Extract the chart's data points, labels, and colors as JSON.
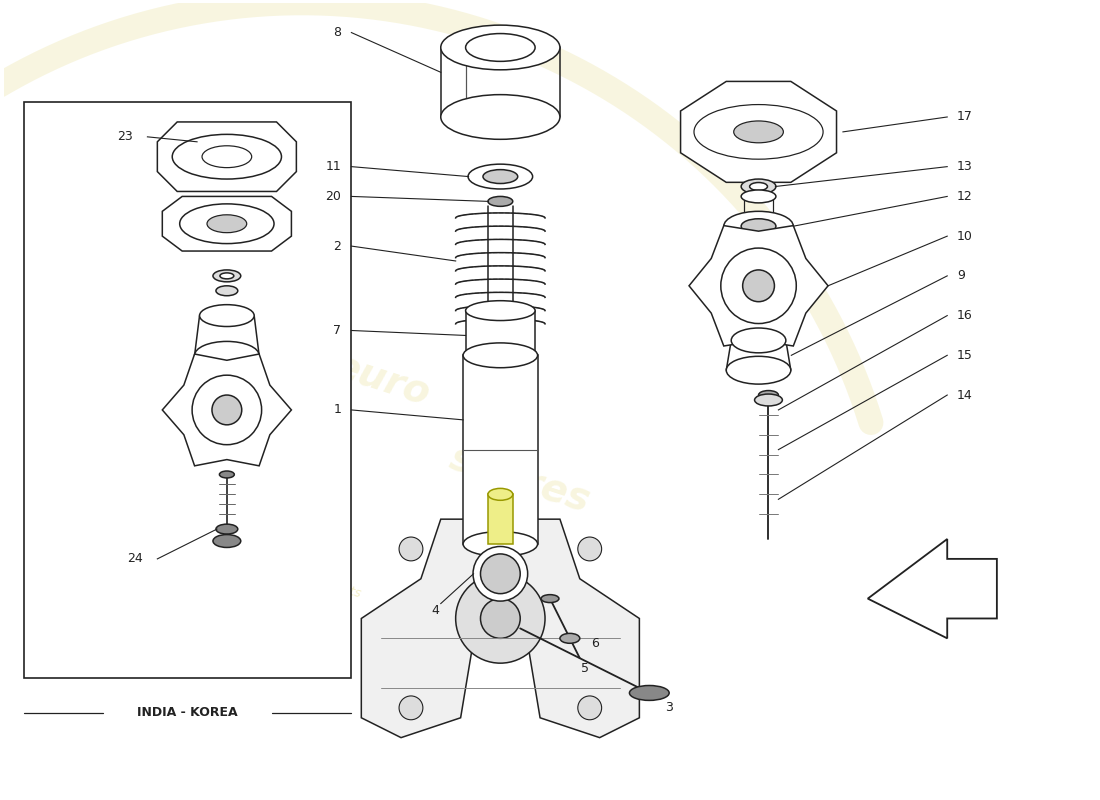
{
  "bg_color": "#ffffff",
  "line_color": "#222222",
  "watermark_color": "#c8b400",
  "inset_label": "INDIA - KOREA",
  "arrow_color": "#222222",
  "label_fontsize": 9,
  "lw": 1.1
}
